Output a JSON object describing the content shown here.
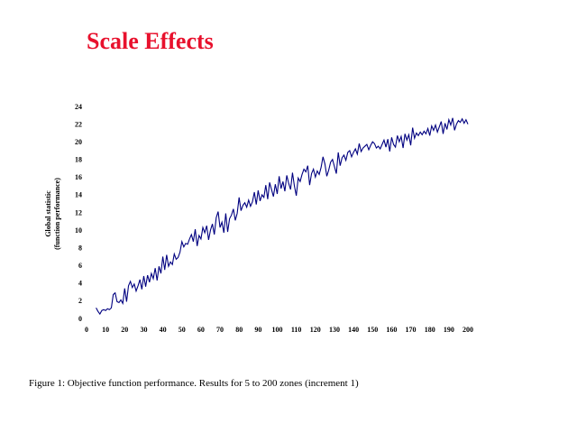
{
  "chart_data": {
    "type": "line",
    "title": "Scale Effects",
    "ylabel": [
      "Global statistic",
      "(function performance)"
    ],
    "caption": "Figure 1: Objective function performance.  Results for 5 to 200 zones (increment 1)",
    "xlim": [
      0,
      200
    ],
    "xticks": [
      0,
      10,
      20,
      30,
      40,
      50,
      60,
      70,
      80,
      90,
      100,
      110,
      120,
      130,
      140,
      150,
      160,
      170,
      180,
      190,
      200
    ],
    "ylim": [
      0,
      24
    ],
    "yticks": [
      0,
      2,
      4,
      6,
      8,
      10,
      12,
      14,
      16,
      18,
      20,
      22,
      24
    ],
    "grid": false,
    "x": [
      5,
      6,
      7,
      8,
      9,
      10,
      11,
      12,
      13,
      14,
      15,
      16,
      17,
      18,
      19,
      20,
      21,
      22,
      23,
      24,
      25,
      26,
      27,
      28,
      29,
      30,
      31,
      32,
      33,
      34,
      35,
      36,
      37,
      38,
      39,
      40,
      41,
      42,
      43,
      44,
      45,
      46,
      47,
      48,
      49,
      50,
      51,
      52,
      53,
      54,
      55,
      56,
      57,
      58,
      59,
      60,
      61,
      62,
      63,
      64,
      65,
      66,
      67,
      68,
      69,
      70,
      71,
      72,
      73,
      74,
      75,
      76,
      77,
      78,
      79,
      80,
      81,
      82,
      83,
      84,
      85,
      86,
      87,
      88,
      89,
      90,
      91,
      92,
      93,
      94,
      95,
      96,
      97,
      98,
      99,
      100,
      101,
      102,
      103,
      104,
      105,
      106,
      107,
      108,
      109,
      110,
      111,
      112,
      113,
      114,
      115,
      116,
      117,
      118,
      119,
      120,
      121,
      122,
      123,
      124,
      125,
      126,
      127,
      128,
      129,
      130,
      131,
      132,
      133,
      134,
      135,
      136,
      137,
      138,
      139,
      140,
      141,
      142,
      143,
      144,
      145,
      146,
      147,
      148,
      149,
      150,
      151,
      152,
      153,
      154,
      155,
      156,
      157,
      158,
      159,
      160,
      161,
      162,
      163,
      164,
      165,
      166,
      167,
      168,
      169,
      170,
      171,
      172,
      173,
      174,
      175,
      176,
      177,
      178,
      179,
      180,
      181,
      182,
      183,
      184,
      185,
      186,
      187,
      188,
      189,
      190,
      191,
      192,
      193,
      194,
      195,
      196,
      197,
      198,
      199,
      200
    ],
    "series": [
      {
        "color": "#000080",
        "values": [
          1.3,
          0.9,
          0.6,
          1.0,
          1.1,
          1.0,
          1.2,
          1.1,
          1.3,
          2.8,
          3.0,
          2.0,
          1.9,
          2.2,
          1.8,
          3.5,
          2.0,
          3.8,
          4.3,
          3.6,
          4.0,
          3.2,
          3.8,
          4.5,
          3.4,
          4.9,
          3.7,
          5.0,
          4.2,
          5.2,
          4.6,
          5.8,
          4.4,
          6.0,
          5.2,
          7.1,
          5.6,
          7.3,
          6.0,
          6.5,
          6.2,
          7.4,
          6.8,
          7.0,
          7.6,
          8.8,
          8.2,
          8.6,
          8.5,
          9.1,
          9.6,
          8.8,
          10.2,
          8.3,
          9.5,
          9.1,
          10.4,
          9.8,
          10.6,
          9.0,
          10.1,
          10.8,
          9.6,
          11.5,
          12.2,
          10.4,
          11.0,
          9.8,
          12.0,
          9.9,
          11.4,
          11.8,
          12.5,
          11.2,
          12.0,
          13.8,
          12.3,
          12.9,
          13.2,
          12.7,
          13.5,
          12.8,
          13.3,
          14.4,
          13.0,
          14.6,
          13.4,
          14.1,
          13.8,
          15.2,
          13.6,
          15.5,
          14.7,
          13.9,
          15.3,
          14.2,
          16.2,
          14.8,
          15.6,
          14.5,
          16.3,
          15.4,
          14.7,
          16.6,
          15.1,
          14.0,
          16.0,
          15.6,
          16.4,
          17.0,
          16.7,
          17.4,
          15.2,
          16.5,
          17.0,
          16.1,
          16.8,
          16.4,
          17.2,
          18.4,
          17.6,
          16.2,
          16.9,
          17.8,
          18.1,
          17.3,
          16.5,
          18.9,
          17.4,
          18.3,
          18.6,
          18.0,
          18.9,
          19.1,
          18.4,
          18.9,
          19.3,
          18.7,
          19.9,
          19.0,
          19.4,
          19.6,
          19.8,
          19.2,
          19.7,
          20.1,
          19.9,
          19.4,
          19.6,
          19.3,
          19.8,
          20.3,
          19.5,
          20.4,
          19.0,
          20.6,
          19.8,
          19.5,
          20.8,
          20.1,
          20.7,
          19.4,
          21.0,
          20.3,
          20.9,
          19.7,
          21.7,
          20.5,
          21.1,
          20.8,
          21.2,
          20.9,
          21.3,
          21.0,
          21.6,
          20.8,
          21.9,
          21.4,
          22.0,
          21.2,
          21.8,
          22.4,
          21.0,
          22.2,
          21.5,
          22.6,
          22.0,
          22.8,
          21.4,
          22.1,
          22.5,
          22.3,
          22.7,
          22.2,
          22.6,
          22.1
        ]
      }
    ]
  }
}
